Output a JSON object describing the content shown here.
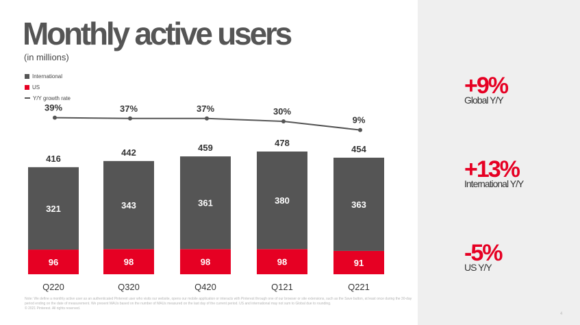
{
  "title": "Monthly active users",
  "subtitle": "(in millions)",
  "legend": {
    "international": "International",
    "us": "US",
    "growth": "Y/Y growth rate"
  },
  "colors": {
    "international": "#555555",
    "us": "#e60023",
    "growth_line": "#555555",
    "accent": "#e60023",
    "side_panel": "#efefef"
  },
  "chart_data": {
    "type": "bar",
    "stacked": true,
    "categories": [
      "Q220",
      "Q320",
      "Q420",
      "Q121",
      "Q221"
    ],
    "series": [
      {
        "name": "US",
        "values": [
          96,
          98,
          98,
          98,
          91
        ]
      },
      {
        "name": "International",
        "values": [
          321,
          343,
          361,
          380,
          363
        ]
      }
    ],
    "totals": [
      416,
      442,
      459,
      478,
      454
    ],
    "growth": {
      "name": "Y/Y growth rate",
      "values": [
        39,
        37,
        37,
        30,
        9
      ],
      "labels": [
        "39%",
        "37%",
        "37%",
        "30%",
        "9%"
      ]
    },
    "title": "Monthly active users",
    "subtitle": "(in millions)"
  },
  "stats": [
    {
      "value": "+9%",
      "label": "Global Y/Y"
    },
    {
      "value": "+13%",
      "label": "International Y/Y"
    },
    {
      "value": "-5%",
      "label": "US Y/Y"
    }
  ],
  "footnote": "Note: We define a monthly active user as an authenticated Pinterest user who visits our website, opens our mobile application or interacts with Pinterest through one of our browser or site extensions, such as the Save button, at least once during the 30-day period ending on the date of measurement. We present MAUs based on the number of MAUs measured on the last day of the current period. US and international may not sum to Global due to rounding.",
  "copyright": "© 2021 Pinterest. All rights reserved.",
  "page_number": "4"
}
